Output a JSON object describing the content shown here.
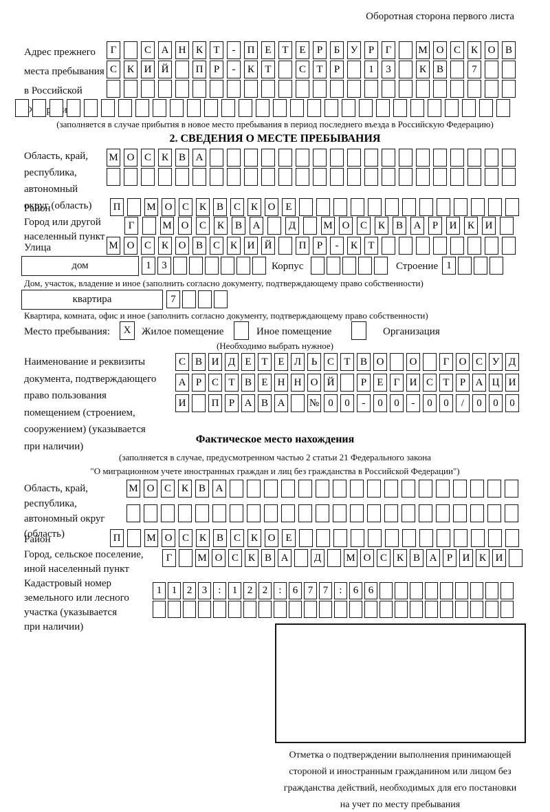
{
  "colors": {
    "ink": "#151515",
    "background": "#ffffff"
  },
  "page_header": "Оборотная сторона первого листа",
  "prev_address": {
    "label_lines": [
      "Адрес прежнего",
      "места пребывания",
      "в Российской",
      "Федерации"
    ],
    "rows": [
      {
        "cells": "Г САНКТ-ПЕТЕРБУРГ МОСКОВ",
        "count": 24
      },
      {
        "cells": "СКИЙ ПР-КТ СТР 13 КВ 7",
        "count": 24
      },
      {
        "cells": "",
        "count": 24
      },
      {
        "cells": "",
        "count": 29
      }
    ],
    "note": "(заполняется в случае прибытия в новое место пребывания в период последнего въезда в Российскую Федерацию)"
  },
  "section2": {
    "title": "2. СВЕДЕНИЯ О МЕСТЕ ПРЕБЫВАНИЯ",
    "region": {
      "label_lines": [
        "Область, край,",
        "республика,",
        "автономный",
        "округ (область)"
      ],
      "rows": [
        {
          "cells": "МОСКВА",
          "count": 24
        },
        {
          "cells": "",
          "count": 24
        }
      ]
    },
    "district": {
      "label": "Район",
      "row": {
        "cells": "П МОСКВСКОЕ",
        "count": 24
      }
    },
    "city": {
      "label_lines": [
        "Город или другой",
        "населенный пункт"
      ],
      "row": {
        "cells": "Г МОСКВА Д МОСКВАРИКИ",
        "count": 22
      }
    },
    "street": {
      "label": "Улица",
      "row": {
        "cells": "МОСКОВСКИЙ ПР-КТ",
        "count": 24
      }
    },
    "house": {
      "box_label": "дом",
      "number_row": {
        "cells": "13",
        "count": 8
      },
      "korpus_label": "Корпус",
      "korpus_row": {
        "cells": "",
        "count": 5
      },
      "stroenie_label": "Строение",
      "stroenie_row": {
        "cells": "1",
        "count": 4
      },
      "note": "Дом, участок, владение и иное (заполнить согласно документу, подтверждающему право собственности)"
    },
    "apartment": {
      "box_label": "квартира",
      "number_row": {
        "cells": "7",
        "count": 4
      },
      "note": "Квартира, комната, офис и иное (заполнить согласно документу, подтверждающему право собственности)"
    },
    "stay_type": {
      "label": "Место пребывания:",
      "checkbox1": "X",
      "option1": "Жилое помещение",
      "checkbox2": "",
      "option2": "Иное помещение",
      "checkbox3": "",
      "option3": "Организация",
      "note": "(Необходимо выбрать нужное)"
    },
    "document": {
      "label_lines": [
        "Наименование и реквизиты",
        "документа, подтверждающего",
        "право пользования",
        "помещением (строением,",
        "сооружением) (указывается",
        "при наличии)"
      ],
      "rows": [
        {
          "cells": "СВИДЕТЕЛЬСТВО О ГОСУД",
          "count": 21
        },
        {
          "cells": "АРСТВЕННОЙ РЕГИСТРАЦИ",
          "count": 21
        },
        {
          "cells": "И ПРАВА №00-00-00/000",
          "count": 21
        }
      ]
    }
  },
  "actual_location": {
    "title": "Фактическое место нахождения",
    "note_lines": [
      "(заполняется в случае, предусмотренном частью 2 статьи 21 Федерального закона",
      "\"О миграционном учете иностранных граждан и лиц без гражданства в Российской Федерации\")"
    ],
    "region": {
      "label_lines": [
        "Область, край,",
        "республика,",
        "автономный округ",
        "(область)"
      ],
      "rows": [
        {
          "cells": "МОСКВА",
          "count": 23
        },
        {
          "cells": "",
          "count": 23
        }
      ]
    },
    "district": {
      "label": "Район",
      "row": {
        "cells": "П МОСКВСКОЕ",
        "count": 24
      }
    },
    "city": {
      "label_lines": [
        "Город, сельское поселение,",
        "иной населенный пункт"
      ],
      "row": {
        "cells": "Г МОСКВА Д МОСКВАРИКИ",
        "count": 22
      }
    },
    "cadastral": {
      "label_lines": [
        "Кадастровый номер",
        "земельного или лесного",
        "участка (указывается",
        "при наличии)"
      ],
      "rows": [
        {
          "cells": "1123:122:677:66",
          "count": 24
        },
        {
          "cells": "",
          "count": 24
        }
      ]
    },
    "stamp_note_lines": [
      "Отметка о подтверждении выполнения принимающей",
      "стороной и иностранным гражданином или лицом без",
      "гражданства действий, необходимых для его постановки",
      "на учет по месту пребывания"
    ]
  }
}
